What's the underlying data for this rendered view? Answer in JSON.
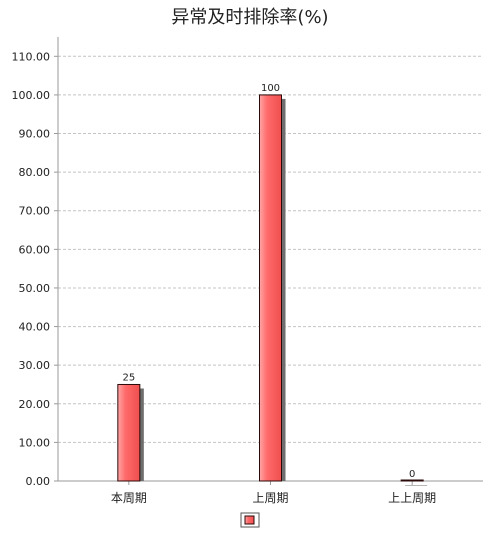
{
  "chart_data": {
    "type": "bar",
    "title": "异常及时排除率(%)",
    "categories": [
      "本周期",
      "上周期",
      "上上周期"
    ],
    "series": [
      {
        "values": [
          25,
          100,
          0
        ]
      }
    ],
    "data_labels": [
      "25",
      "100",
      "0"
    ],
    "ylim": [
      0,
      115
    ],
    "yticks": [
      0,
      10,
      20,
      30,
      40,
      50,
      60,
      70,
      80,
      90,
      100,
      110
    ],
    "ytick_labels": [
      "0.00",
      "10.00",
      "20.00",
      "30.00",
      "40.00",
      "50.00",
      "60.00",
      "70.00",
      "80.00",
      "90.00",
      "100.00",
      "110.00"
    ],
    "xlabel": "",
    "ylabel": "",
    "grid": true,
    "legend": "bottom-center",
    "colors": {
      "bar_light": "#ffa6a6",
      "bar_mid": "#ff6a6a",
      "bar_dark": "#ef4f4f",
      "bar_border": "#2a0a0a",
      "shadow": "#6e6e6e",
      "grid": "#c4c4c4",
      "axis": "#9a9a9a",
      "text": "#222222"
    }
  }
}
